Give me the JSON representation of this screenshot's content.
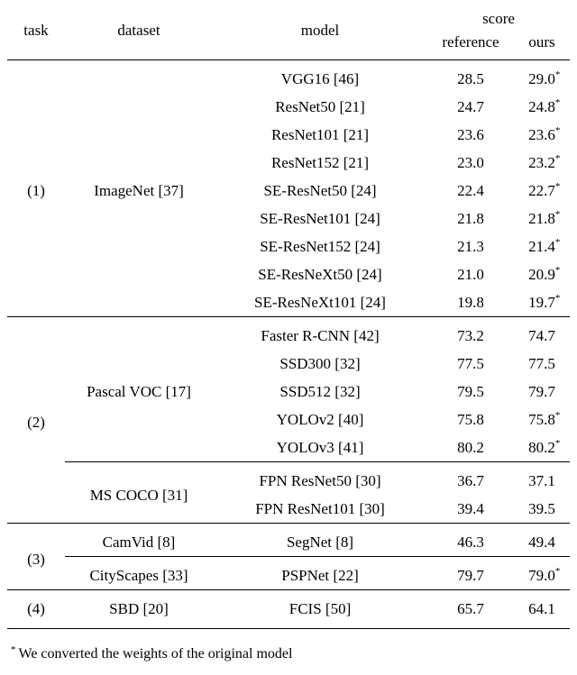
{
  "header": {
    "task": "task",
    "dataset": "dataset",
    "model": "model",
    "score": "score",
    "reference": "reference",
    "ours": "ours"
  },
  "table": {
    "tasks": [
      "(1)",
      "(2)",
      "(3)",
      "(4)"
    ],
    "datasets": [
      "ImageNet [37]",
      "Pascal VOC [17]",
      "MS COCO [31]",
      "CamVid [8]",
      "CityScapes [33]",
      "SBD [20]"
    ],
    "rows": [
      {
        "model": "VGG16 [46]",
        "reference": "28.5",
        "ours": "29.0",
        "star": "*"
      },
      {
        "model": "ResNet50 [21]",
        "reference": "24.7",
        "ours": "24.8",
        "star": "*"
      },
      {
        "model": "ResNet101 [21]",
        "reference": "23.6",
        "ours": "23.6",
        "star": "*"
      },
      {
        "model": "ResNet152 [21]",
        "reference": "23.0",
        "ours": "23.2",
        "star": "*"
      },
      {
        "model": "SE-ResNet50 [24]",
        "reference": "22.4",
        "ours": "22.7",
        "star": "*"
      },
      {
        "model": "SE-ResNet101 [24]",
        "reference": "21.8",
        "ours": "21.8",
        "star": "*"
      },
      {
        "model": "SE-ResNet152 [24]",
        "reference": "21.3",
        "ours": "21.4",
        "star": "*"
      },
      {
        "model": "SE-ResNeXt50 [24]",
        "reference": "21.0",
        "ours": "20.9",
        "star": "*"
      },
      {
        "model": "SE-ResNeXt101 [24]",
        "reference": "19.8",
        "ours": "19.7",
        "star": "*"
      },
      {
        "model": "Faster R-CNN [42]",
        "reference": "73.2",
        "ours": "74.7",
        "star": ""
      },
      {
        "model": "SSD300 [32]",
        "reference": "77.5",
        "ours": "77.5",
        "star": ""
      },
      {
        "model": "SSD512 [32]",
        "reference": "79.5",
        "ours": "79.7",
        "star": ""
      },
      {
        "model": "YOLOv2 [40]",
        "reference": "75.8",
        "ours": "75.8",
        "star": "*"
      },
      {
        "model": "YOLOv3 [41]",
        "reference": "80.2",
        "ours": "80.2",
        "star": "*"
      },
      {
        "model": "FPN ResNet50 [30]",
        "reference": "36.7",
        "ours": "37.1",
        "star": ""
      },
      {
        "model": "FPN ResNet101 [30]",
        "reference": "39.4",
        "ours": "39.5",
        "star": ""
      },
      {
        "model": "SegNet [8]",
        "reference": "46.3",
        "ours": "49.4",
        "star": ""
      },
      {
        "model": "PSPNet [22]",
        "reference": "79.7",
        "ours": "79.0",
        "star": "*"
      },
      {
        "model": "FCIS [50]",
        "reference": "65.7",
        "ours": "64.1",
        "star": ""
      }
    ]
  },
  "footnote": {
    "marker": "*",
    "text": "We converted the weights of the original model"
  }
}
